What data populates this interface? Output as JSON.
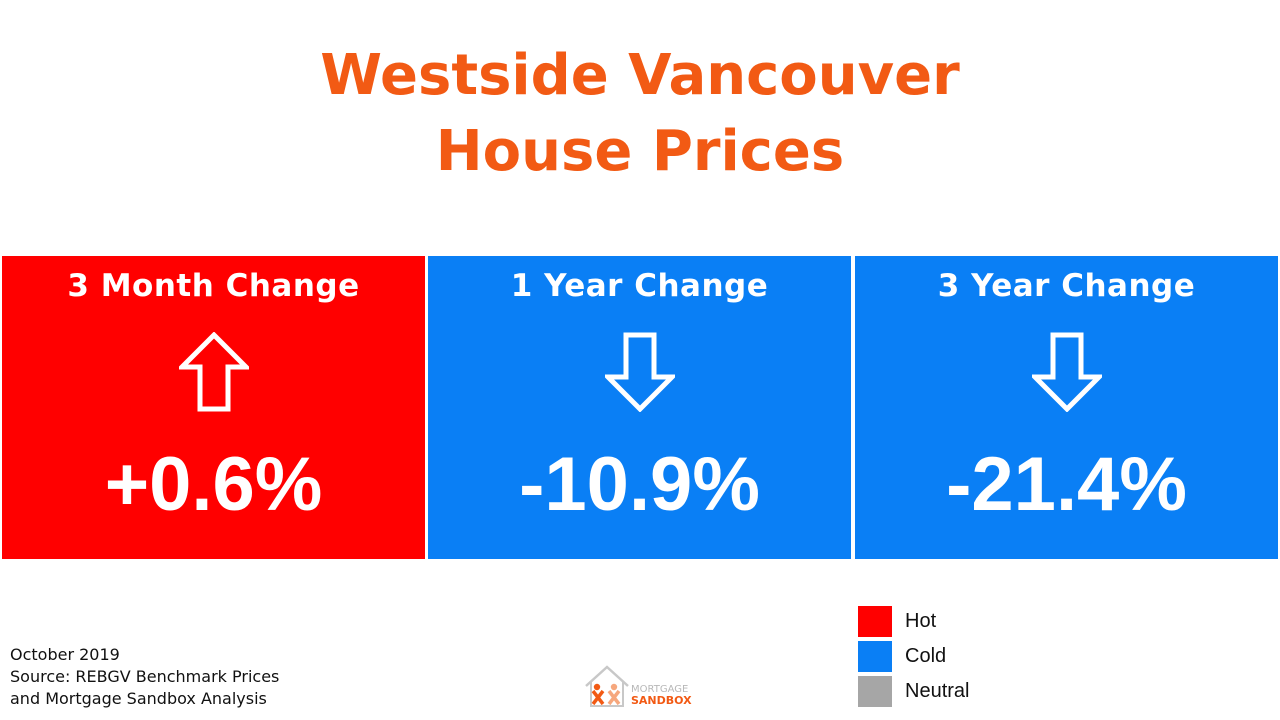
{
  "title": {
    "line1": "Westside Vancouver",
    "line2": "House Prices",
    "color": "#f25a14"
  },
  "panels": [
    {
      "heading": "3 Month Change",
      "value": "+0.6%",
      "direction": "up",
      "status": "Hot",
      "color": "#ff0000"
    },
    {
      "heading": "1 Year Change",
      "value": "-10.9%",
      "direction": "down",
      "status": "Cold",
      "color": "#0a7ff5"
    },
    {
      "heading": "3 Year Change",
      "value": "-21.4%",
      "direction": "down",
      "status": "Cold",
      "color": "#0a7ff5"
    }
  ],
  "footer": {
    "date": "October 2019",
    "source_line1": "Source: REBGV Benchmark Prices",
    "source_line2": "and Mortgage Sandbox Analysis"
  },
  "logo": {
    "line1": "MORTGAGE",
    "line2": "SANDBOX"
  },
  "legend": [
    {
      "label": "Hot",
      "color": "#ff0000"
    },
    {
      "label": "Cold",
      "color": "#0a7ff5"
    },
    {
      "label": "Neutral",
      "color": "#a6a6a6"
    }
  ]
}
